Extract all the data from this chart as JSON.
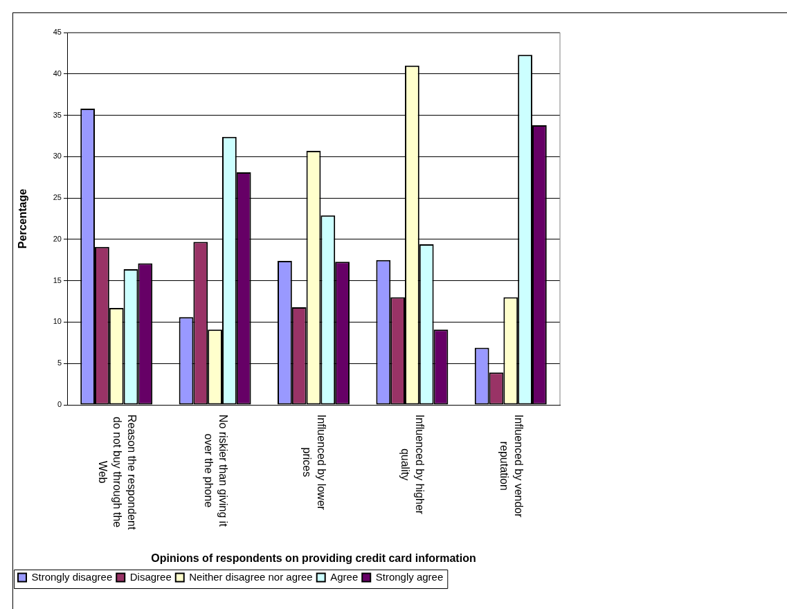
{
  "chart_data": {
    "type": "bar",
    "xlabel": "Opinions of respondents on providing credit card information",
    "ylabel": "Percentage",
    "categories": [
      "Reason the respondent do not buy through the Web",
      "No riskier than giving it over the phone",
      "Influenced by lower prices",
      "Influenced by higher quality",
      "Influenced by vendor reputation"
    ],
    "series": [
      {
        "name": "Strongly disagree",
        "color": "#9999ff",
        "values": [
          35.8,
          10.6,
          17.4,
          17.5,
          6.9
        ]
      },
      {
        "name": "Disagree",
        "color": "#993366",
        "values": [
          19.1,
          19.7,
          11.8,
          13.0,
          3.9
        ]
      },
      {
        "name": "Neither disagree nor agree",
        "color": "#ffffcc",
        "values": [
          11.7,
          9.1,
          30.7,
          41.0,
          13.0
        ]
      },
      {
        "name": "Agree",
        "color": "#ccffff",
        "values": [
          16.4,
          32.4,
          22.9,
          19.4,
          42.3
        ]
      },
      {
        "name": "Strongly agree",
        "color": "#660066",
        "values": [
          17.1,
          28.1,
          17.3,
          9.1,
          33.8
        ]
      }
    ],
    "ylim": [
      0,
      45
    ],
    "yticks": [
      0,
      5,
      10,
      15,
      20,
      25,
      30,
      35,
      40,
      45
    ],
    "grid": "y",
    "legend": "bottom"
  }
}
